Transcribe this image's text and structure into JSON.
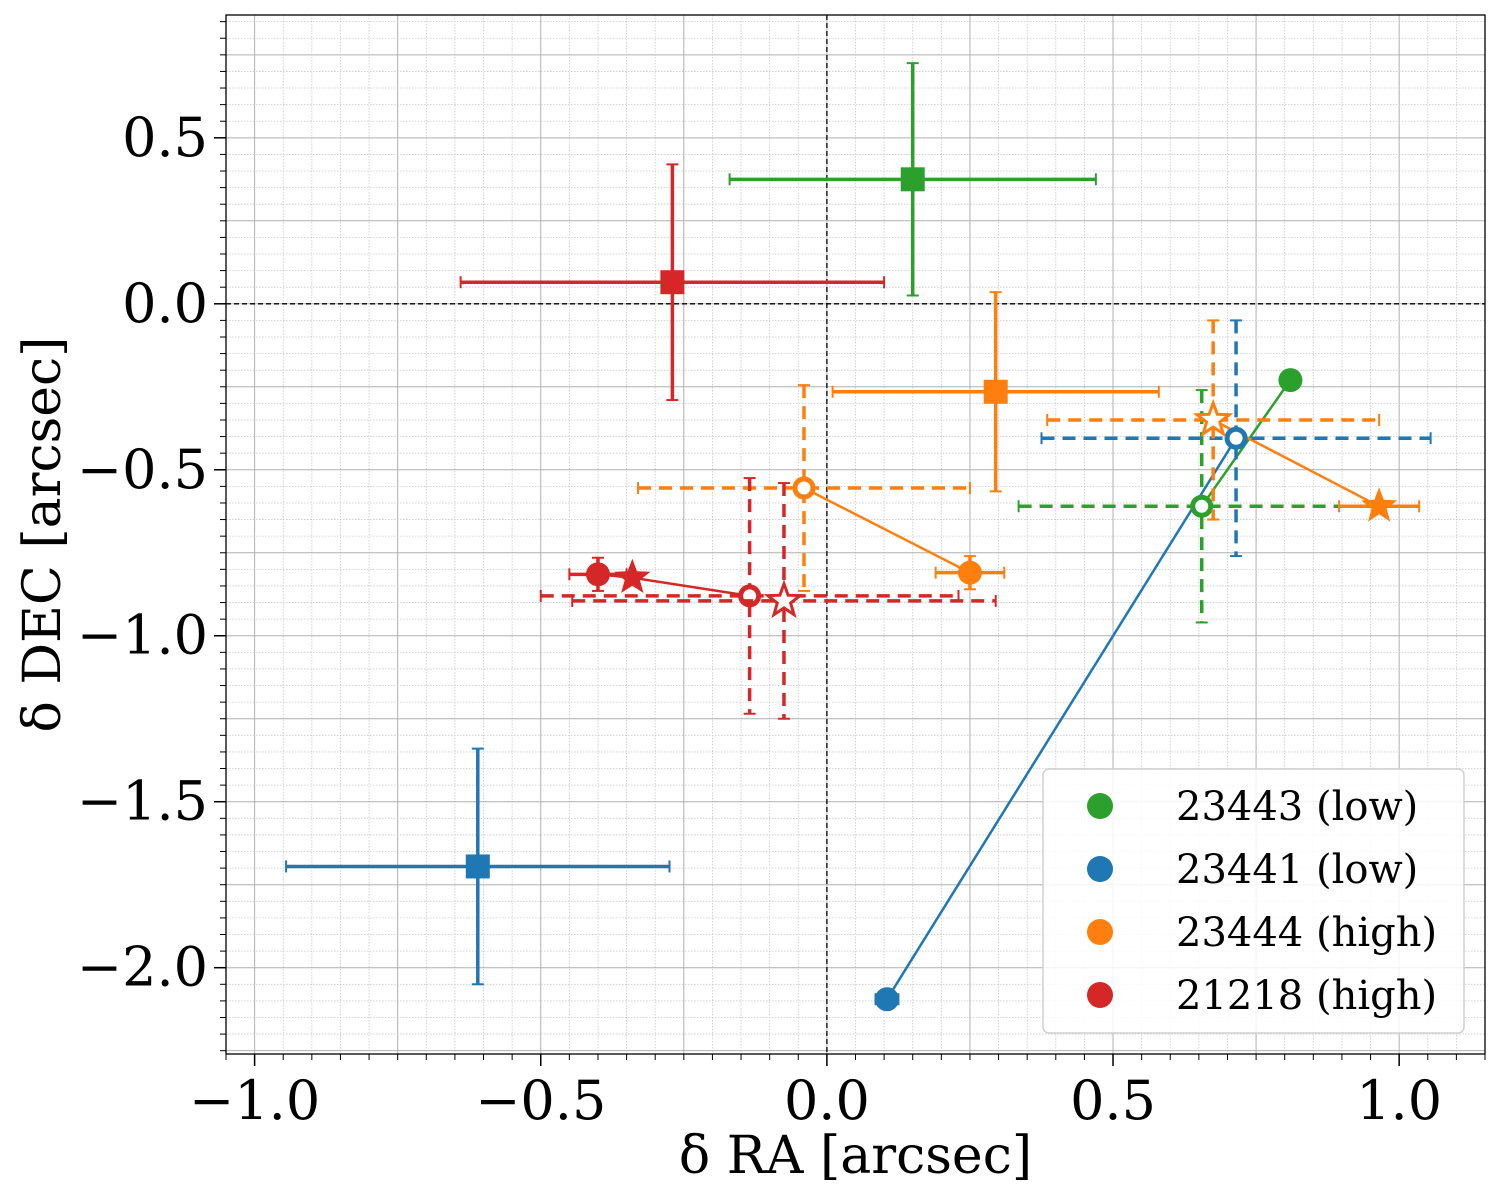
{
  "chart_data": {
    "type": "scatter",
    "xlabel": "δ RA [arcsec]",
    "ylabel": "δ DEC [arcsec]",
    "xlim": [
      -1.05,
      1.15
    ],
    "ylim": [
      -2.26,
      0.87
    ],
    "xticks": [
      {
        "value": -1.0,
        "label": "−1.0"
      },
      {
        "value": -0.5,
        "label": "−0.5"
      },
      {
        "value": 0.0,
        "label": "0.0"
      },
      {
        "value": 0.5,
        "label": "0.5"
      },
      {
        "value": 1.0,
        "label": "1.0"
      }
    ],
    "yticks": [
      {
        "value": 0.5,
        "label": "0.5"
      },
      {
        "value": 0.0,
        "label": "0.0"
      },
      {
        "value": -0.5,
        "label": "−0.5"
      },
      {
        "value": -1.0,
        "label": "−1.0"
      },
      {
        "value": -1.5,
        "label": "−1.5"
      },
      {
        "value": -2.0,
        "label": "−2.0"
      }
    ],
    "grid": true,
    "reference_lines": {
      "x": 0.0,
      "y": 0.0
    },
    "legend_position": "lower-right",
    "series": [
      {
        "name": "23443 (low)",
        "color": "#2ca02c",
        "square": {
          "x": 0.15,
          "y": 0.375,
          "xerr": 0.32,
          "yerr": 0.35
        },
        "filled_circle": {
          "x": 0.81,
          "y": -0.23
        },
        "open_circle": {
          "x": 0.655,
          "y": -0.61,
          "xerr": 0.32,
          "yerr": 0.35
        },
        "star": null,
        "open_star": null
      },
      {
        "name": "23441 (low)",
        "color": "#1f77b4",
        "square": {
          "x": -0.61,
          "y": -1.695,
          "xerr": 0.335,
          "yerr": 0.355
        },
        "filled_circle": {
          "x": 0.105,
          "y": -2.095,
          "xerr": 0.02
        },
        "open_circle": {
          "x": 0.715,
          "y": -0.405,
          "xerr": 0.34,
          "yerr": 0.355
        },
        "star": null,
        "open_star": null
      },
      {
        "name": "23444 (high)",
        "color": "#ff7f0e",
        "square": {
          "x": 0.295,
          "y": -0.265,
          "xerr": 0.285,
          "yerr": 0.3
        },
        "filled_circle": {
          "x": 0.25,
          "y": -0.81,
          "xerr": 0.06,
          "yerr": 0.05
        },
        "open_circle": {
          "x": -0.04,
          "y": -0.555,
          "xerr": 0.29,
          "yerr": 0.31
        },
        "star": {
          "x": 0.965,
          "y": -0.61,
          "xerr": 0.07
        },
        "open_star": {
          "x": 0.675,
          "y": -0.35,
          "xerr": 0.29,
          "yerr": 0.3
        }
      },
      {
        "name": "21218 (high)",
        "color": "#d62728",
        "square": {
          "x": -0.27,
          "y": 0.065,
          "xerr": 0.37,
          "yerr": 0.355
        },
        "filled_circle": {
          "x": -0.4,
          "y": -0.815,
          "xerr": 0.05,
          "yerr": 0.05
        },
        "open_circle": {
          "x": -0.135,
          "y": -0.88,
          "xerr": 0.365,
          "yerr": 0.355
        },
        "star": {
          "x": -0.34,
          "y": -0.825
        },
        "open_star": {
          "x": -0.075,
          "y": -0.895,
          "xerr": 0.37,
          "yerr": 0.355
        }
      }
    ],
    "connections": [
      {
        "series": 0,
        "points": [
          "open_circle",
          "filled_circle"
        ]
      },
      {
        "series": 1,
        "points": [
          "filled_circle",
          "open_circle"
        ]
      },
      {
        "series": 2,
        "points": [
          "filled_circle",
          "open_circle"
        ]
      },
      {
        "series": 2,
        "points": [
          "open_star",
          "star"
        ]
      },
      {
        "series": 3,
        "points": [
          "filled_circle",
          "star",
          "open_circle"
        ]
      }
    ]
  }
}
